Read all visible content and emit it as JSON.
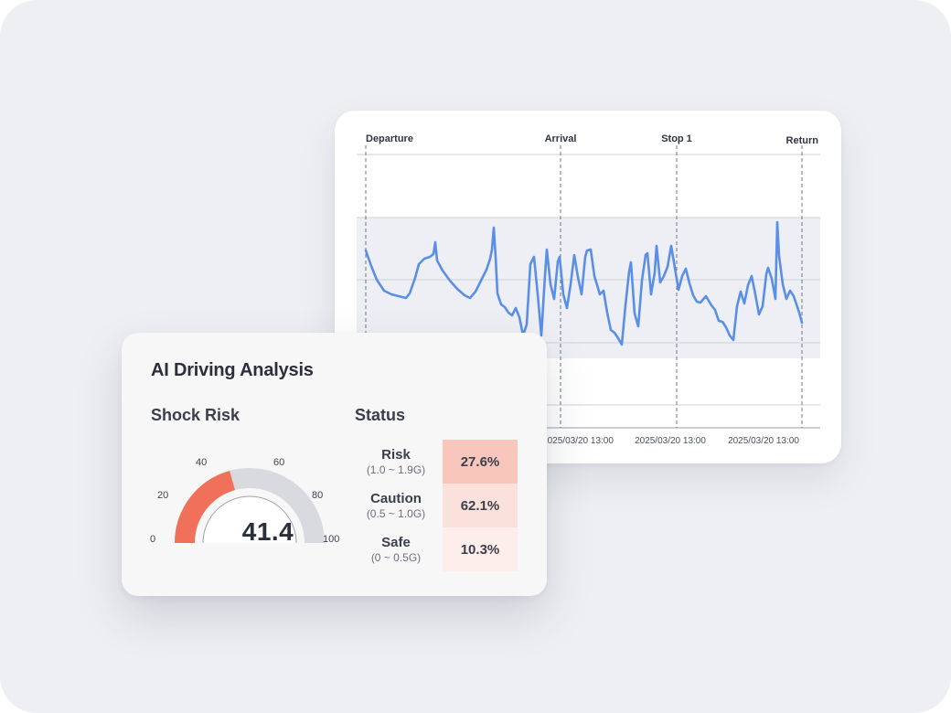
{
  "timeline_chart": {
    "markers": [
      "Departure",
      "Arrival",
      "Stop 1",
      "Return"
    ],
    "x_tick_labels": [
      "2025/03/20 13:00",
      "2025/03/20 13:00",
      "2025/03/20 13:00"
    ],
    "series_color": "#5b8ee6",
    "band_color": "#edeff4"
  },
  "analysis": {
    "title": "AI Driving Analysis",
    "shock_risk": {
      "title": "Shock Risk",
      "value": "41.4",
      "value_numeric": 41.4,
      "scale_ticks": [
        "0",
        "20",
        "40",
        "60",
        "80",
        "100"
      ],
      "fill_color": "#f0705a",
      "track_color": "#d9dadf"
    },
    "status": {
      "title": "Status",
      "rows": [
        {
          "name": "Risk",
          "range": "(1.0 ~ 1.9G)",
          "value": "27.6%",
          "color": "#f9c6bb"
        },
        {
          "name": "Caution",
          "range": "(0.5 ~ 1.0G)",
          "value": "62.1%",
          "color": "#fbe1dc"
        },
        {
          "name": "Safe",
          "range": "(0 ~ 0.5G)",
          "value": "10.3%",
          "color": "#fdeeeb"
        }
      ]
    }
  }
}
